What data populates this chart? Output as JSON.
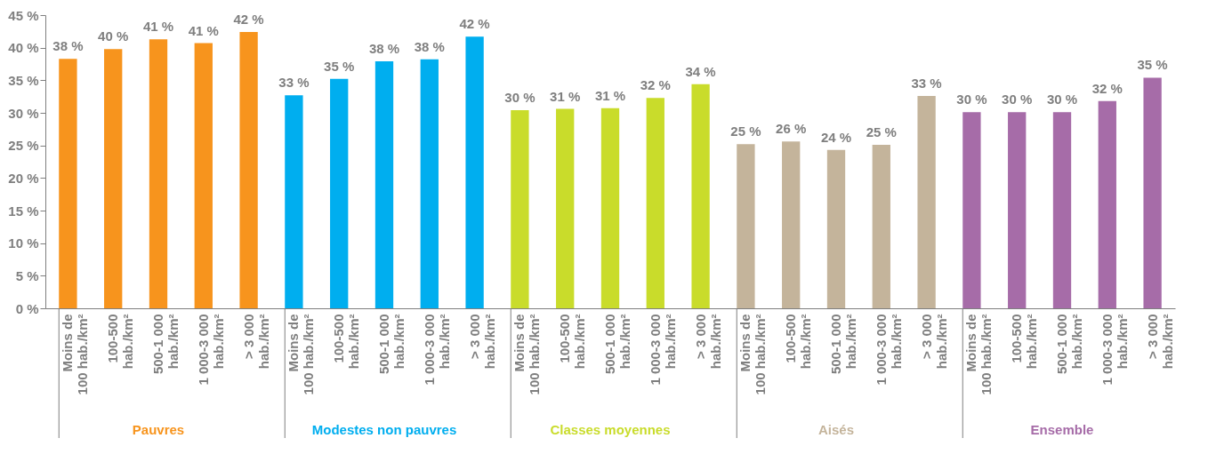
{
  "chart_data": {
    "type": "bar",
    "categories": [
      "Moins de\n100 hab./km²",
      "100-500\nhab./km²",
      "500-1 000\nhab./km²",
      "1 000-3 000\nhab./km²",
      "> 3 000\nhab./km²",
      "Moins de\n100 hab./km²",
      "100-500\nhab./km²",
      "500-1 000\nhab./km²",
      "1 000-3 000\nhab./km²",
      "> 3 000\nhab./km²",
      "Moins de\n100 hab./km²",
      "100-500\nhab./km²",
      "500-1 000\nhab./km²",
      "1 000-3 000\nhab./km²",
      "> 3 000\nhab./km²",
      "Moins de\n100 hab./km²",
      "100-500\nhab./km²",
      "500-1 000\nhab./km²",
      "1 000-3 000\nhab./km²",
      "> 3 000\nhab./km²",
      "Moins de\n100 hab./km²",
      "100-500\nhab./km²",
      "500-1 000\nhab./km²",
      "1 000-3 000\nhab./km²",
      "> 3 000\nhab./km²"
    ],
    "series": [
      {
        "name": "Pauvres",
        "color": "#f7941d",
        "values": [
          38.3,
          39.8,
          41.3,
          40.7,
          42.4,
          null,
          null,
          null,
          null,
          null,
          null,
          null,
          null,
          null,
          null,
          null,
          null,
          null,
          null,
          null,
          null,
          null,
          null,
          null,
          null
        ],
        "value_labels": [
          "38 %",
          "40 %",
          "41 %",
          "41 %",
          "42 %",
          null,
          null,
          null,
          null,
          null,
          null,
          null,
          null,
          null,
          null,
          null,
          null,
          null,
          null,
          null,
          null,
          null,
          null,
          null,
          null
        ]
      },
      {
        "name": "Modestes non pauvres",
        "color": "#00aeef",
        "values": [
          null,
          null,
          null,
          null,
          null,
          32.7,
          35.2,
          37.9,
          38.2,
          41.7,
          null,
          null,
          null,
          null,
          null,
          null,
          null,
          null,
          null,
          null,
          null,
          null,
          null,
          null,
          null
        ],
        "value_labels": [
          null,
          null,
          null,
          null,
          null,
          "33 %",
          "35 %",
          "38 %",
          "38 %",
          "42 %",
          null,
          null,
          null,
          null,
          null,
          null,
          null,
          null,
          null,
          null,
          null,
          null,
          null,
          null,
          null
        ]
      },
      {
        "name": "Classes moyennes",
        "color": "#c9dc2b",
        "values": [
          null,
          null,
          null,
          null,
          null,
          null,
          null,
          null,
          null,
          null,
          30.4,
          30.6,
          30.7,
          32.3,
          34.4,
          null,
          null,
          null,
          null,
          null,
          null,
          null,
          null,
          null,
          null
        ],
        "value_labels": [
          null,
          null,
          null,
          null,
          null,
          null,
          null,
          null,
          null,
          null,
          "30 %",
          "31 %",
          "31 %",
          "32 %",
          "34 %",
          null,
          null,
          null,
          null,
          null,
          null,
          null,
          null,
          null,
          null
        ]
      },
      {
        "name": "Aisés",
        "color": "#c4b49b",
        "values": [
          null,
          null,
          null,
          null,
          null,
          null,
          null,
          null,
          null,
          null,
          null,
          null,
          null,
          null,
          null,
          25.2,
          25.6,
          24.3,
          25.1,
          32.6,
          null,
          null,
          null,
          null,
          null
        ],
        "value_labels": [
          null,
          null,
          null,
          null,
          null,
          null,
          null,
          null,
          null,
          null,
          null,
          null,
          null,
          null,
          null,
          "25 %",
          "26 %",
          "24 %",
          "25 %",
          "33 %",
          null,
          null,
          null,
          null,
          null
        ]
      },
      {
        "name": "Ensemble",
        "color": "#a66ca8",
        "values": [
          null,
          null,
          null,
          null,
          null,
          null,
          null,
          null,
          null,
          null,
          null,
          null,
          null,
          null,
          null,
          null,
          null,
          null,
          null,
          null,
          30.1,
          30.1,
          30.1,
          31.8,
          35.4
        ],
        "value_labels": [
          null,
          null,
          null,
          null,
          null,
          null,
          null,
          null,
          null,
          null,
          null,
          null,
          null,
          null,
          null,
          null,
          null,
          null,
          null,
          null,
          "30 %",
          "30 %",
          "30 %",
          "32 %",
          "35 %"
        ]
      }
    ],
    "ylim": [
      0,
      45
    ],
    "yticks": [
      {
        "value": 0,
        "label": "0 %"
      },
      {
        "value": 5,
        "label": "5 %"
      },
      {
        "value": 10,
        "label": "10 %"
      },
      {
        "value": 15,
        "label": "15 %"
      },
      {
        "value": 20,
        "label": "20 %"
      },
      {
        "value": 25,
        "label": "25 %"
      },
      {
        "value": 30,
        "label": "30 %"
      },
      {
        "value": 35,
        "label": "35 %"
      },
      {
        "value": 40,
        "label": "40 %"
      },
      {
        "value": 45,
        "label": "45 %"
      }
    ],
    "grid": false,
    "legend": false
  }
}
